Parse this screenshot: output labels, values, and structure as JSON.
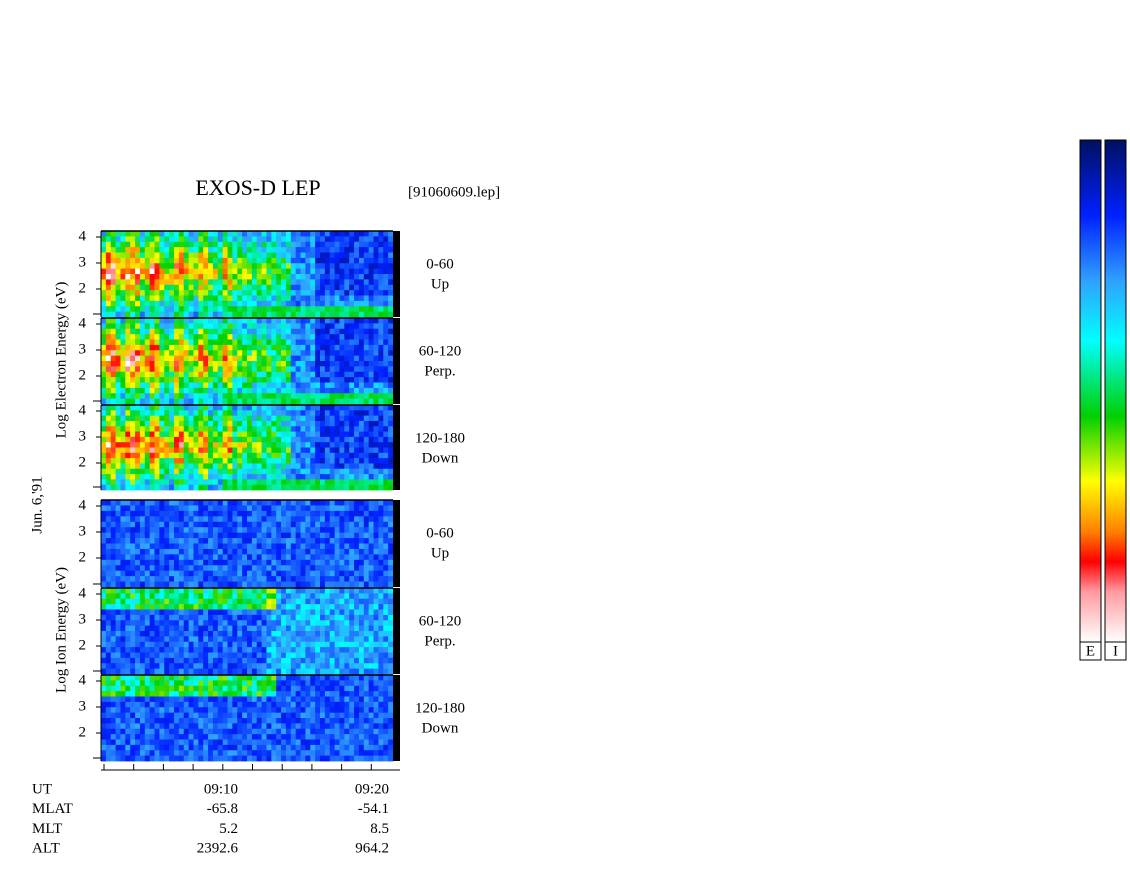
{
  "header": {
    "title": "EXOS-D LEP",
    "file": "[91060609.lep]"
  },
  "date": "Jun. 6,'91",
  "electron_axis_label": "Log  Electron  Energy (eV)",
  "ion_axis_label": "Log  Ion  Energy (eV)",
  "energy_tick_labels": [
    "4",
    "3",
    "2"
  ],
  "electron_panels": [
    {
      "angle": "0-60",
      "direction": "Up"
    },
    {
      "angle": "60-120",
      "direction": "Perp."
    },
    {
      "angle": "120-180",
      "direction": "Down"
    }
  ],
  "ion_panels": [
    {
      "angle": "0-60",
      "direction": "Up"
    },
    {
      "angle": "60-120",
      "direction": "Perp."
    },
    {
      "angle": "120-180",
      "direction": "Down"
    }
  ],
  "orbit_table": {
    "rows": [
      {
        "label": "UT",
        "values": [
          "09:10",
          "09:20"
        ]
      },
      {
        "label": "MLAT",
        "values": [
          "-65.8",
          "-54.1"
        ]
      },
      {
        "label": "MLT",
        "values": [
          "5.2",
          "8.5"
        ]
      },
      {
        "label": "ALT",
        "values": [
          "2392.6",
          "964.2"
        ]
      }
    ]
  },
  "colorbar_labels": [
    "E",
    "I"
  ]
}
